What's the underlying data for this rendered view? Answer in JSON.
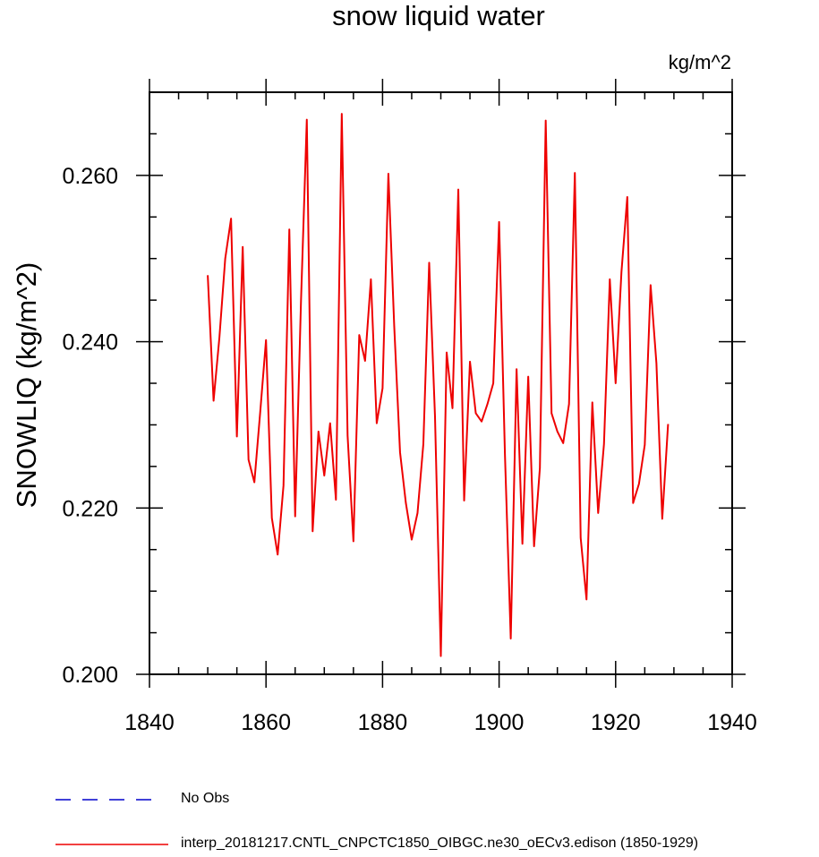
{
  "chart_data": {
    "type": "line",
    "title": "snow liquid water",
    "units": "kg/m^2",
    "ylabel": "SNOWLIQ  (kg/m^2)",
    "xlabel": "",
    "xlim": [
      1840,
      1940
    ],
    "ylim": [
      0.2,
      0.27
    ],
    "x_ticks": [
      1840,
      1860,
      1880,
      1900,
      1920,
      1940
    ],
    "x_tick_labels": [
      "1840",
      "1860",
      "1880",
      "1900",
      "1920",
      "1940"
    ],
    "y_ticks": [
      0.2,
      0.22,
      0.24,
      0.26
    ],
    "y_tick_labels": [
      "0.200",
      "0.220",
      "0.240",
      "0.260"
    ],
    "grid": false,
    "series": [
      {
        "name": "interp_20181217.CNTL_CNPCTC1850_OIBGC.ne30_oECv3.edison (1850-1929)",
        "color": "#ee0000",
        "style": "solid",
        "x": [
          1850,
          1851,
          1852,
          1853,
          1854,
          1855,
          1856,
          1857,
          1858,
          1859,
          1860,
          1861,
          1862,
          1863,
          1864,
          1865,
          1866,
          1867,
          1868,
          1869,
          1870,
          1871,
          1872,
          1873,
          1874,
          1875,
          1876,
          1877,
          1878,
          1879,
          1880,
          1881,
          1882,
          1883,
          1884,
          1885,
          1886,
          1887,
          1888,
          1889,
          1890,
          1891,
          1892,
          1893,
          1894,
          1895,
          1896,
          1897,
          1898,
          1899,
          1900,
          1901,
          1902,
          1903,
          1904,
          1905,
          1906,
          1907,
          1908,
          1909,
          1910,
          1911,
          1912,
          1913,
          1914,
          1915,
          1916,
          1917,
          1918,
          1919,
          1920,
          1921,
          1922,
          1923,
          1924,
          1925,
          1926,
          1927,
          1928,
          1929
        ],
        "values": [
          0.248,
          0.2329,
          0.2405,
          0.25,
          0.2548,
          0.2286,
          0.2514,
          0.2258,
          0.2231,
          0.2315,
          0.2402,
          0.2188,
          0.2144,
          0.2227,
          0.2535,
          0.219,
          0.2448,
          0.2667,
          0.2172,
          0.2292,
          0.2239,
          0.2302,
          0.221,
          0.2674,
          0.2287,
          0.216,
          0.2408,
          0.2377,
          0.2475,
          0.2302,
          0.2344,
          0.2602,
          0.2419,
          0.2267,
          0.2206,
          0.2162,
          0.2194,
          0.2277,
          0.2495,
          0.231,
          0.2022,
          0.2387,
          0.232,
          0.2583,
          0.2209,
          0.2376,
          0.2314,
          0.2304,
          0.2325,
          0.235,
          0.2544,
          0.2265,
          0.2043,
          0.2367,
          0.2157,
          0.2358,
          0.2154,
          0.2248,
          0.2666,
          0.2314,
          0.2292,
          0.2278,
          0.2325,
          0.2603,
          0.2164,
          0.209,
          0.2327,
          0.2194,
          0.2277,
          0.2475,
          0.235,
          0.2484,
          0.2574,
          0.2206,
          0.2229,
          0.2276,
          0.2468,
          0.2374,
          0.2187,
          0.2301
        ]
      },
      {
        "name": "No Obs",
        "color": "#0000cc",
        "style": "dashed",
        "x": [],
        "values": []
      }
    ],
    "legend_position": "bottom-left"
  }
}
